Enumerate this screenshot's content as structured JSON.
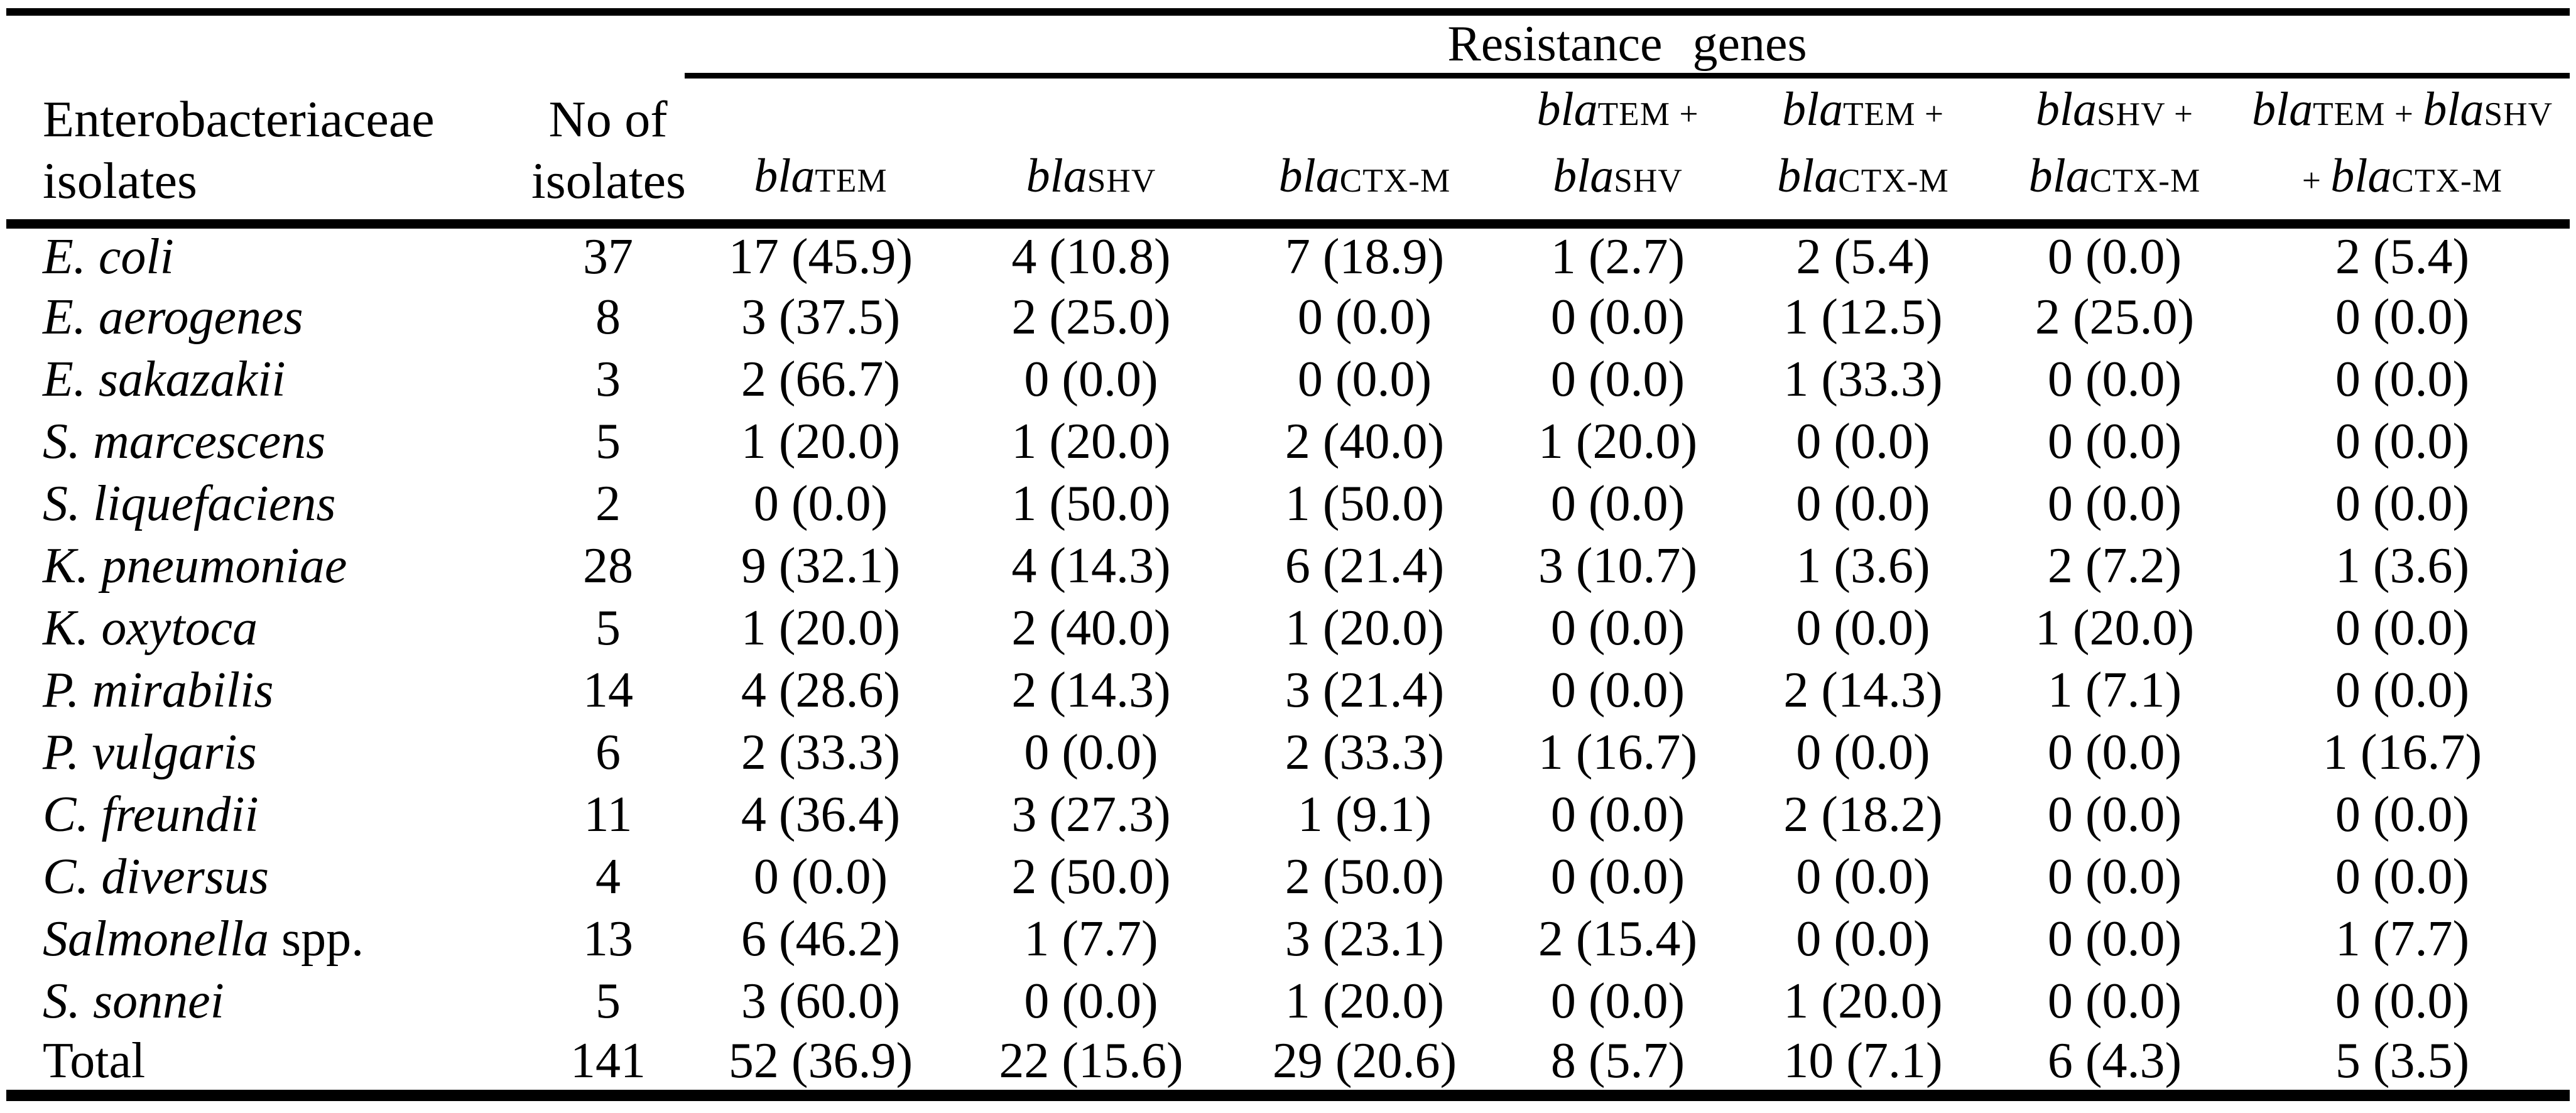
{
  "table": {
    "resistance_header": "Resistance genes",
    "col1_header_line1": "Enterobacteriaceae",
    "col1_header_line2": "isolates",
    "col2_header_line1": "No of",
    "col2_header_line2": "isolates",
    "gene_columns": [
      {
        "line1": [],
        "line2": [
          {
            "st": "it",
            "t": "bla"
          },
          {
            "st": "sc",
            "t": "TEM"
          }
        ]
      },
      {
        "line1": [],
        "line2": [
          {
            "st": "it",
            "t": "bla"
          },
          {
            "st": "sc",
            "t": "SHV"
          }
        ]
      },
      {
        "line1": [],
        "line2": [
          {
            "st": "it",
            "t": "bla"
          },
          {
            "st": "sc",
            "t": "CTX-M"
          }
        ]
      },
      {
        "line1": [
          {
            "st": "it",
            "t": "bla"
          },
          {
            "st": "sc",
            "t": "TEM"
          },
          {
            "st": "sc",
            "t": " +"
          }
        ],
        "line2": [
          {
            "st": "it",
            "t": "bla"
          },
          {
            "st": "sc",
            "t": "SHV"
          }
        ]
      },
      {
        "line1": [
          {
            "st": "it",
            "t": "bla"
          },
          {
            "st": "sc",
            "t": "TEM"
          },
          {
            "st": "sc",
            "t": " +"
          }
        ],
        "line2": [
          {
            "st": "it",
            "t": "bla"
          },
          {
            "st": "sc",
            "t": "CTX-M"
          }
        ]
      },
      {
        "line1": [
          {
            "st": "it",
            "t": "bla"
          },
          {
            "st": "sc",
            "t": "SHV"
          },
          {
            "st": "sc",
            "t": " +"
          }
        ],
        "line2": [
          {
            "st": "it",
            "t": "bla"
          },
          {
            "st": "sc",
            "t": "CTX-M"
          }
        ]
      },
      {
        "line1": [
          {
            "st": "it",
            "t": "bla"
          },
          {
            "st": "sc",
            "t": "TEM"
          },
          {
            "st": "sc",
            "t": " + "
          },
          {
            "st": "it",
            "t": "bla"
          },
          {
            "st": "sc",
            "t": "SHV"
          }
        ],
        "line2": [
          {
            "st": "sc",
            "t": "+ "
          },
          {
            "st": "it",
            "t": "bla"
          },
          {
            "st": "sc",
            "t": "CTX-M"
          }
        ]
      }
    ],
    "rows": [
      {
        "name_italic": "E. coli",
        "name_roman": "",
        "no": "37",
        "values": [
          "17 (45.9)",
          "4 (10.8)",
          "7 (18.9)",
          "1 (2.7)",
          "2 (5.4)",
          "0 (0.0)",
          "2 (5.4)"
        ]
      },
      {
        "name_italic": "E. aerogenes",
        "name_roman": "",
        "no": "8",
        "values": [
          "3 (37.5)",
          "2 (25.0)",
          "0 (0.0)",
          "0 (0.0)",
          "1 (12.5)",
          "2 (25.0)",
          "0 (0.0)"
        ]
      },
      {
        "name_italic": "E. sakazakii",
        "name_roman": "",
        "no": "3",
        "values": [
          "2 (66.7)",
          "0 (0.0)",
          "0 (0.0)",
          "0 (0.0)",
          "1 (33.3)",
          "0 (0.0)",
          "0 (0.0)"
        ]
      },
      {
        "name_italic": "S. marcescens",
        "name_roman": "",
        "no": "5",
        "values": [
          "1 (20.0)",
          "1 (20.0)",
          "2 (40.0)",
          "1 (20.0)",
          "0 (0.0)",
          "0 (0.0)",
          "0 (0.0)"
        ]
      },
      {
        "name_italic": "S. liquefaciens",
        "name_roman": "",
        "no": "2",
        "values": [
          "0 (0.0)",
          "1 (50.0)",
          "1 (50.0)",
          "0 (0.0)",
          "0 (0.0)",
          "0 (0.0)",
          "0 (0.0)"
        ]
      },
      {
        "name_italic": "K. pneumoniae",
        "name_roman": "",
        "no": "28",
        "values": [
          "9 (32.1)",
          "4 (14.3)",
          "6 (21.4)",
          "3 (10.7)",
          "1 (3.6)",
          "2 (7.2)",
          "1 (3.6)"
        ]
      },
      {
        "name_italic": "K. oxytoca",
        "name_roman": "",
        "no": "5",
        "values": [
          "1 (20.0)",
          "2 (40.0)",
          "1 (20.0)",
          "0 (0.0)",
          "0 (0.0)",
          "1 (20.0)",
          "0 (0.0)"
        ]
      },
      {
        "name_italic": "P. mirabilis",
        "name_roman": "",
        "no": "14",
        "values": [
          "4 (28.6)",
          "2 (14.3)",
          "3 (21.4)",
          "0 (0.0)",
          "2 (14.3)",
          "1 (7.1)",
          "0 (0.0)"
        ]
      },
      {
        "name_italic": "P. vulgaris",
        "name_roman": "",
        "no": "6",
        "values": [
          "2 (33.3)",
          "0 (0.0)",
          "2 (33.3)",
          "1 (16.7)",
          "0 (0.0)",
          "0 (0.0)",
          "1 (16.7)"
        ]
      },
      {
        "name_italic": "C. freundii",
        "name_roman": "",
        "no": "11",
        "values": [
          "4 (36.4)",
          "3 (27.3)",
          "1 (9.1)",
          "0 (0.0)",
          "2 (18.2)",
          "0 (0.0)",
          "0 (0.0)"
        ]
      },
      {
        "name_italic": "C. diversus",
        "name_roman": "",
        "no": "4",
        "values": [
          "0 (0.0)",
          "2 (50.0)",
          "2 (50.0)",
          "0 (0.0)",
          "0 (0.0)",
          "0 (0.0)",
          "0 (0.0)"
        ]
      },
      {
        "name_italic": "Salmonella",
        "name_roman": " spp.",
        "no": "13",
        "values": [
          "6 (46.2)",
          "1 (7.7)",
          "3 (23.1)",
          "2 (15.4)",
          "0 (0.0)",
          "0 (0.0)",
          "1 (7.7)"
        ]
      },
      {
        "name_italic": "S. sonnei",
        "name_roman": "",
        "no": "5",
        "values": [
          "3 (60.0)",
          "0 (0.0)",
          "1 (20.0)",
          "0 (0.0)",
          "1 (20.0)",
          "0 (0.0)",
          "0 (0.0)"
        ]
      },
      {
        "name_italic": "",
        "name_roman": "Total",
        "no": "141",
        "values": [
          "52 (36.9)",
          "22 (15.6)",
          "29 (20.6)",
          "8 (5.7)",
          "10 (7.1)",
          "6 (4.3)",
          "5 (3.5)"
        ]
      }
    ]
  }
}
